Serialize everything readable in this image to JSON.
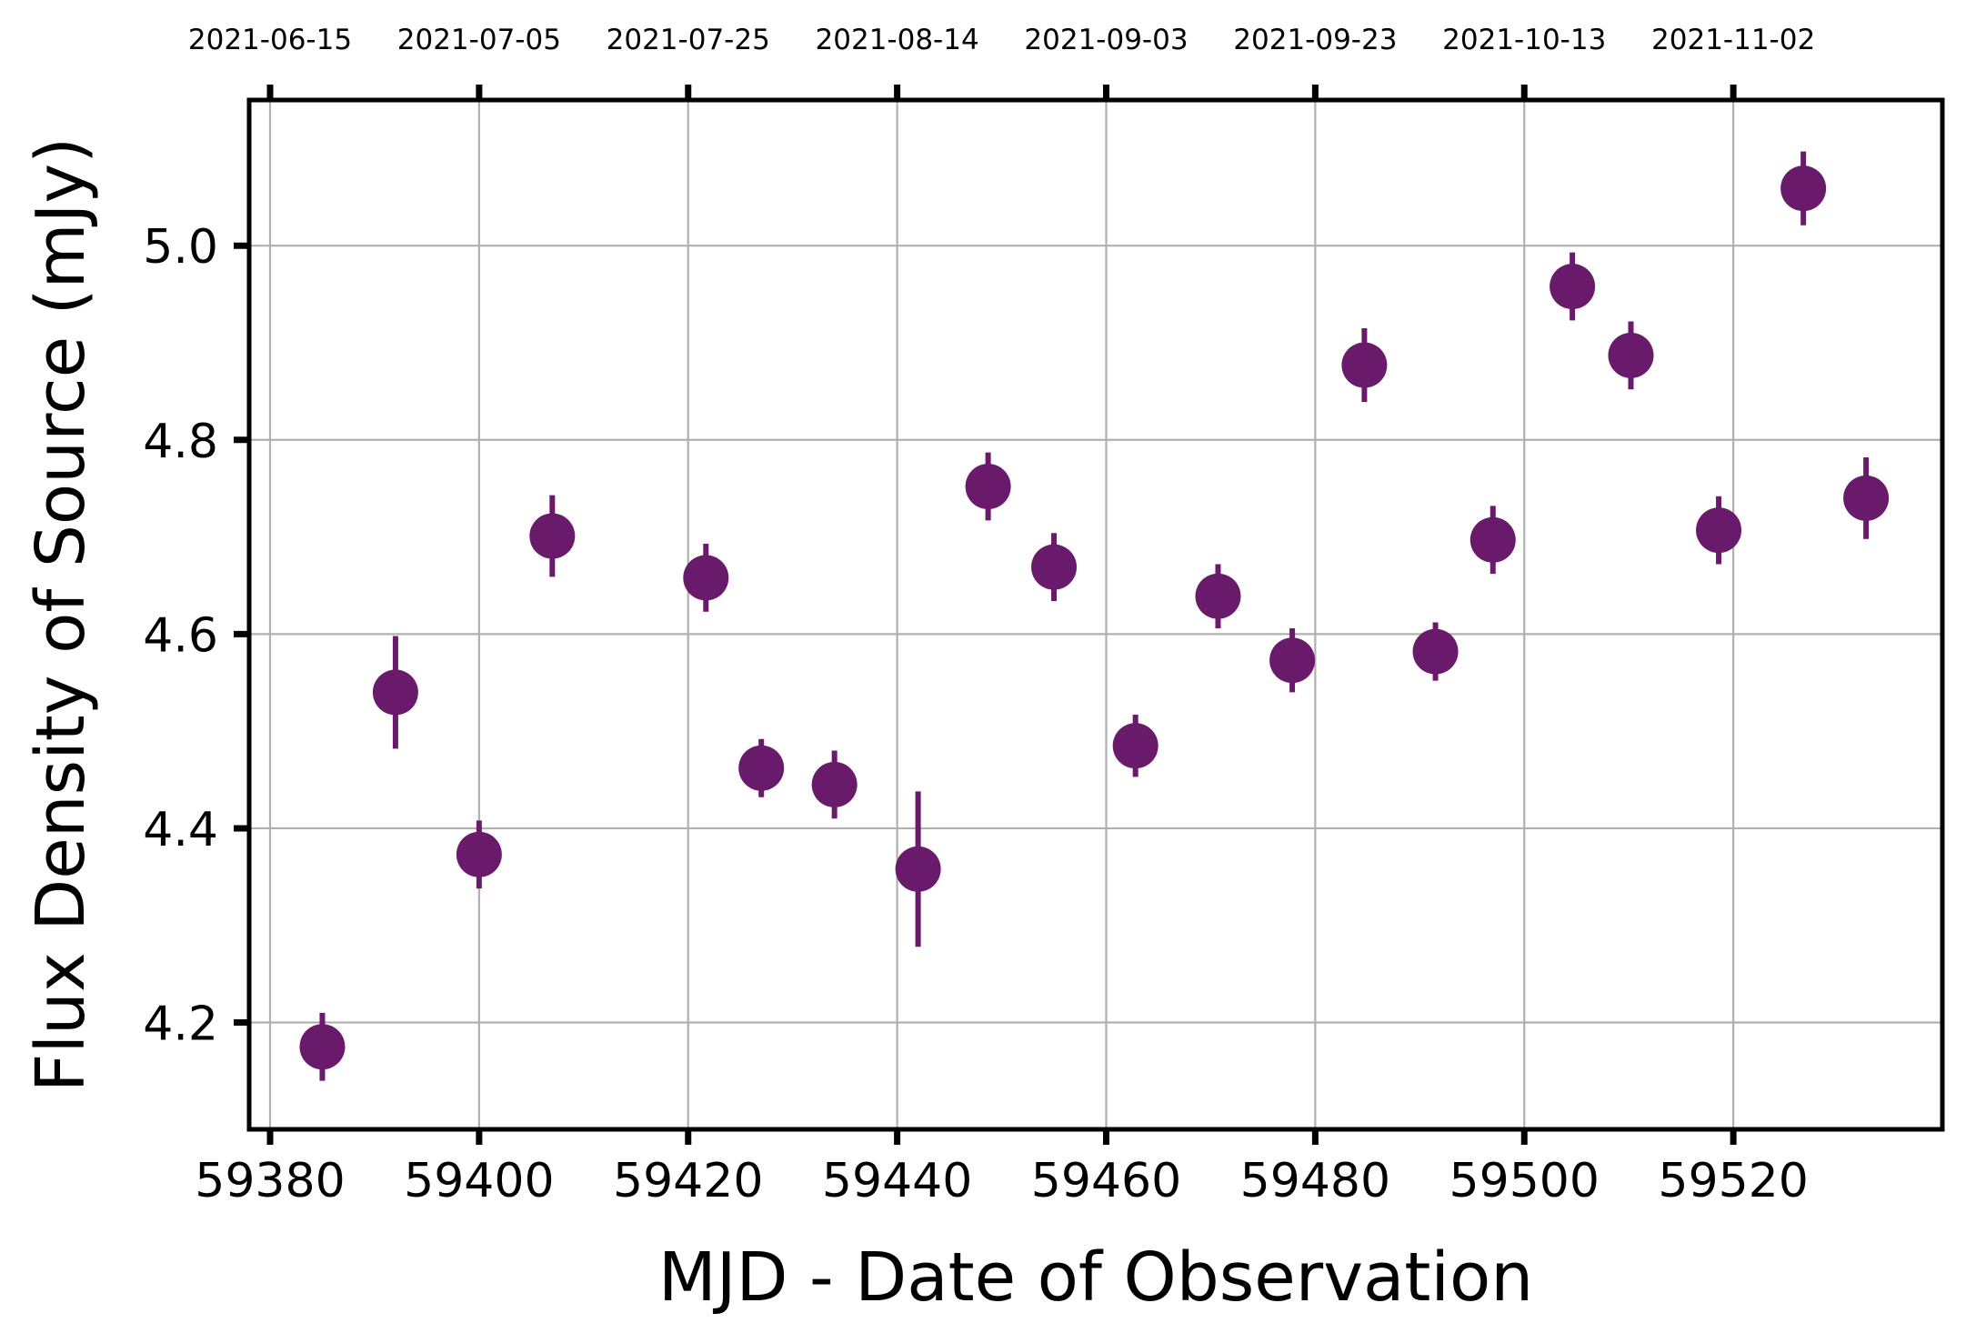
{
  "chart_data": {
    "type": "scatter",
    "xlabel": "MJD - Date of Observation",
    "ylabel": "Flux Density of Source (mJy)",
    "xlim": [
      59378,
      59540
    ],
    "ylim": [
      4.09,
      5.15
    ],
    "grid": true,
    "marker_color": "#6a1a6a",
    "x_ticks": [
      59380,
      59400,
      59420,
      59440,
      59460,
      59480,
      59500,
      59520
    ],
    "y_ticks": [
      4.2,
      4.4,
      4.6,
      4.8,
      5.0
    ],
    "y_tick_labels": [
      "4.2",
      "4.4",
      "4.6",
      "4.8",
      "5.0"
    ],
    "top_ticks": [
      {
        "x": 59380,
        "label": "2021-06-15"
      },
      {
        "x": 59400,
        "label": "2021-07-05"
      },
      {
        "x": 59420,
        "label": "2021-07-25"
      },
      {
        "x": 59440,
        "label": "2021-08-14"
      },
      {
        "x": 59460,
        "label": "2021-09-03"
      },
      {
        "x": 59480,
        "label": "2021-09-23"
      },
      {
        "x": 59500,
        "label": "2021-10-13"
      },
      {
        "x": 59520,
        "label": "2021-11-02"
      }
    ],
    "points": [
      {
        "x": 59385.0,
        "y": 4.175,
        "err": 0.035
      },
      {
        "x": 59392.0,
        "y": 4.54,
        "err": 0.058
      },
      {
        "x": 59400.0,
        "y": 4.373,
        "err": 0.035
      },
      {
        "x": 59407.0,
        "y": 4.701,
        "err": 0.042
      },
      {
        "x": 59421.7,
        "y": 4.658,
        "err": 0.035
      },
      {
        "x": 59427.0,
        "y": 4.462,
        "err": 0.03
      },
      {
        "x": 59434.0,
        "y": 4.445,
        "err": 0.035
      },
      {
        "x": 59442.0,
        "y": 4.358,
        "err": 0.08
      },
      {
        "x": 59448.7,
        "y": 4.752,
        "err": 0.035
      },
      {
        "x": 59455.0,
        "y": 4.669,
        "err": 0.035
      },
      {
        "x": 59462.8,
        "y": 4.485,
        "err": 0.032
      },
      {
        "x": 59470.7,
        "y": 4.639,
        "err": 0.033
      },
      {
        "x": 59477.8,
        "y": 4.573,
        "err": 0.033
      },
      {
        "x": 59484.7,
        "y": 4.877,
        "err": 0.038
      },
      {
        "x": 59491.5,
        "y": 4.582,
        "err": 0.03
      },
      {
        "x": 59497.0,
        "y": 4.697,
        "err": 0.035
      },
      {
        "x": 59504.6,
        "y": 4.958,
        "err": 0.035
      },
      {
        "x": 59510.2,
        "y": 4.887,
        "err": 0.035
      },
      {
        "x": 59518.6,
        "y": 4.707,
        "err": 0.035
      },
      {
        "x": 59526.7,
        "y": 5.059,
        "err": 0.038
      },
      {
        "x": 59532.7,
        "y": 4.74,
        "err": 0.042
      }
    ]
  }
}
